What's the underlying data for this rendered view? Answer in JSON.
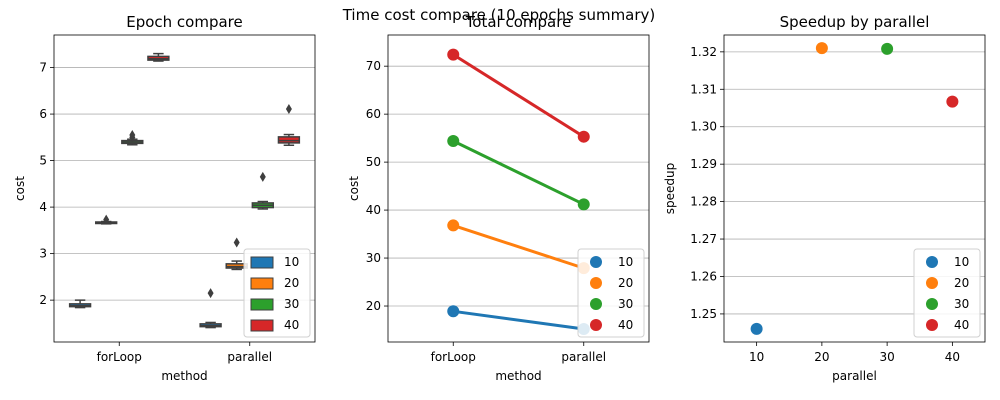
{
  "figure": {
    "suptitle": "Time cost compare (10 epochs summary)"
  },
  "colors": {
    "10": "#1f77b4",
    "20": "#ff7f0e",
    "30": "#2ca02c",
    "40": "#d62728",
    "grid": "#b0b0b0",
    "box_line": "#3f3f3f"
  },
  "chart_data": [
    {
      "type": "box",
      "title": "Epoch compare",
      "xlabel": "method",
      "ylabel": "cost",
      "categories": [
        "forLoop",
        "parallel"
      ],
      "ylim": [
        1.1,
        7.7
      ],
      "yticks": [
        2,
        3,
        4,
        5,
        6,
        7
      ],
      "grid": "y",
      "legend": {
        "placement": "lower-right",
        "labels": [
          "10",
          "20",
          "30",
          "40"
        ]
      },
      "series": [
        {
          "name": "10",
          "boxes": [
            {
              "whislo": 1.84,
              "q1": 1.86,
              "med": 1.88,
              "q3": 1.92,
              "whishi": 2.0,
              "fliers": []
            },
            {
              "whislo": 1.41,
              "q1": 1.43,
              "med": 1.45,
              "q3": 1.49,
              "whishi": 1.52,
              "fliers": [
                2.15
              ]
            }
          ]
        },
        {
          "name": "20",
          "boxes": [
            {
              "whislo": 3.64,
              "q1": 3.65,
              "med": 3.66,
              "q3": 3.68,
              "whishi": 3.69,
              "fliers": [
                3.73
              ]
            },
            {
              "whislo": 2.66,
              "q1": 2.69,
              "med": 2.72,
              "q3": 2.78,
              "whishi": 2.84,
              "fliers": [
                3.24
              ]
            }
          ]
        },
        {
          "name": "30",
          "boxes": [
            {
              "whislo": 5.34,
              "q1": 5.37,
              "med": 5.4,
              "q3": 5.43,
              "whishi": 5.46,
              "fliers": [
                5.5,
                5.55
              ]
            },
            {
              "whislo": 3.96,
              "q1": 3.99,
              "med": 4.04,
              "q3": 4.09,
              "whishi": 4.12,
              "fliers": [
                4.65
              ]
            }
          ]
        },
        {
          "name": "40",
          "boxes": [
            {
              "whislo": 7.14,
              "q1": 7.16,
              "med": 7.19,
              "q3": 7.24,
              "whishi": 7.3,
              "fliers": []
            },
            {
              "whislo": 5.33,
              "q1": 5.38,
              "med": 5.43,
              "q3": 5.51,
              "whishi": 5.56,
              "fliers": [
                6.11
              ]
            }
          ]
        }
      ]
    },
    {
      "type": "line",
      "title": "Total compare",
      "xlabel": "method",
      "ylabel": "cost",
      "categories": [
        "forLoop",
        "parallel"
      ],
      "ylim": [
        12.5,
        76.5
      ],
      "yticks": [
        20,
        30,
        40,
        50,
        60,
        70
      ],
      "grid": "y",
      "legend": {
        "placement": "lower-right",
        "labels": [
          "10",
          "20",
          "30",
          "40"
        ]
      },
      "series": [
        {
          "name": "10",
          "values": [
            18.9,
            15.2
          ]
        },
        {
          "name": "20",
          "values": [
            36.8,
            27.9
          ]
        },
        {
          "name": "30",
          "values": [
            54.4,
            41.2
          ]
        },
        {
          "name": "40",
          "values": [
            72.4,
            55.3
          ]
        }
      ]
    },
    {
      "type": "scatter",
      "title": "Speedup by parallel",
      "xlabel": "parallel",
      "ylabel": "speedup",
      "categories": [
        "10",
        "20",
        "30",
        "40"
      ],
      "ylim": [
        1.2425,
        1.3245
      ],
      "yticks": [
        1.25,
        1.26,
        1.27,
        1.28,
        1.29,
        1.3,
        1.31,
        1.32
      ],
      "ytick_labels": [
        "1.25",
        "1.26",
        "1.27",
        "1.28",
        "1.29",
        "1.30",
        "1.31",
        "1.32"
      ],
      "grid": "y",
      "legend": {
        "placement": "lower-right",
        "labels": [
          "10",
          "20",
          "30",
          "40"
        ]
      },
      "series": [
        {
          "name": "10",
          "values": [
            1.246
          ]
        },
        {
          "name": "20",
          "values": [
            1.321
          ]
        },
        {
          "name": "30",
          "values": [
            1.3208
          ]
        },
        {
          "name": "40",
          "values": [
            1.3067
          ]
        }
      ]
    }
  ]
}
